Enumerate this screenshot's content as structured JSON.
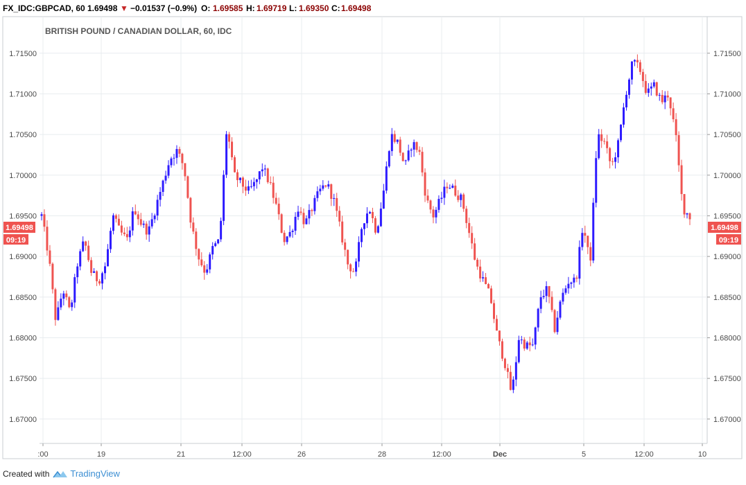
{
  "header": {
    "symbol": "FX_IDC:GBPCAD, 60",
    "last": "1.69498",
    "change": "−0.01537 (−0.9%)",
    "open_label": "O:",
    "open": "1.69585",
    "high_label": "H:",
    "high": "1.69719",
    "low_label": "L:",
    "low": "1.69350",
    "close_label": "C:",
    "close": "1.69498"
  },
  "footer": {
    "created_with": "Created with",
    "brand": "TradingView"
  },
  "colors": {
    "up": "#2d1bff",
    "down": "#ef5350",
    "grid": "#e8ecef",
    "axis_text": "#4a4a4a",
    "price_tag": "#ef5350"
  },
  "chart_data": {
    "type": "candlestick",
    "title": "BRITISH POUND / CANADIAN DOLLAR, 60, IDC",
    "ylim": [
      1.667,
      1.7195
    ],
    "y_ticks": [
      "1.67000",
      "1.67500",
      "1.68000",
      "1.68500",
      "1.69000",
      "1.69500",
      "1.70000",
      "1.70500",
      "1.71000",
      "1.71500"
    ],
    "x_ticks": [
      ":00",
      "19",
      "21",
      "12:00",
      "26",
      "28",
      "12:00",
      "Dec",
      "5",
      "12:00",
      "10"
    ],
    "last_price": "1.69498",
    "countdown": "09:19",
    "grid": true,
    "series": [
      {
        "values": [
          1.695,
          1.69,
          1.682,
          1.686,
          1.683,
          1.689,
          1.692,
          1.688,
          1.687,
          1.689,
          1.695,
          1.693,
          1.692,
          1.696,
          1.694,
          1.693,
          1.696,
          1.699,
          1.702,
          1.703,
          1.701,
          1.694,
          1.69,
          1.688,
          1.691,
          1.692,
          1.706,
          1.7,
          1.699,
          1.698,
          1.699,
          1.701,
          1.699,
          1.696,
          1.692,
          1.693,
          1.696,
          1.694,
          1.696,
          1.698,
          1.699,
          1.697,
          1.693,
          1.689,
          1.688,
          1.694,
          1.696,
          1.693,
          1.698,
          1.705,
          1.704,
          1.701,
          1.704,
          1.703,
          1.697,
          1.695,
          1.697,
          1.699,
          1.698,
          1.697,
          1.693,
          1.689,
          1.687,
          1.685,
          1.68,
          1.677,
          1.673,
          1.68,
          1.679,
          1.679,
          1.685,
          1.686,
          1.681,
          1.685,
          1.687,
          1.687,
          1.694,
          1.689,
          1.705,
          1.704,
          1.701,
          1.704,
          1.71,
          1.714,
          1.713,
          1.71,
          1.711,
          1.709,
          1.71,
          1.705,
          1.696,
          1.6949
        ]
      }
    ]
  }
}
